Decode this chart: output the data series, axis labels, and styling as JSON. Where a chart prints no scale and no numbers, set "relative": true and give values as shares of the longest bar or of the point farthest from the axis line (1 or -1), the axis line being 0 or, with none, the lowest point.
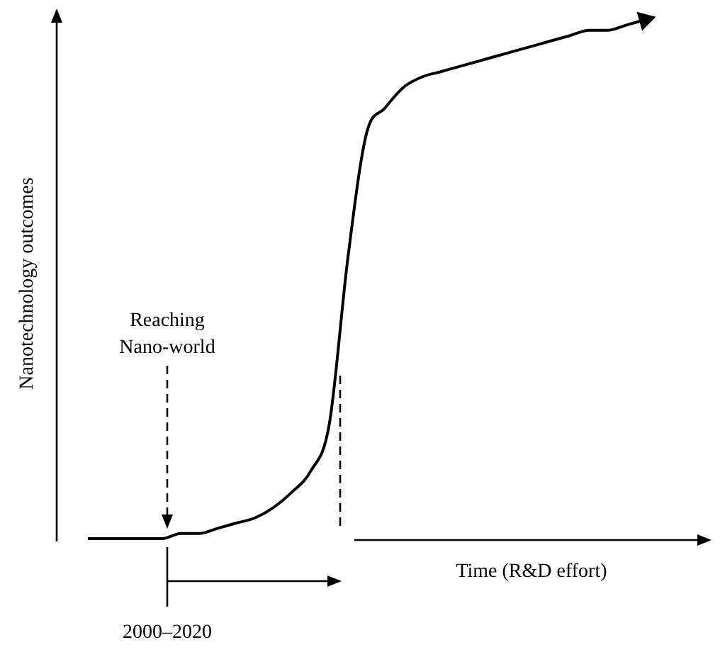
{
  "chart_data": {
    "type": "line",
    "relative": true,
    "xlabel": "Time (R&D effort)",
    "ylabel": "Nanotechnology outcomes",
    "categories": [
      null,
      null,
      null,
      null,
      null,
      null,
      null,
      null,
      null,
      null,
      null,
      null,
      null,
      null,
      null,
      null,
      null,
      null,
      null,
      null,
      null,
      null,
      null,
      null,
      null,
      null,
      null,
      null,
      null,
      null,
      null
    ],
    "series": [
      {
        "color": "#000000",
        "values": [
          0,
          0,
          0,
          0,
          0,
          0.01,
          0.01,
          0.02,
          0.03,
          0.04,
          0.06,
          0.09,
          0.13,
          0.22,
          0.54,
          0.78,
          0.83,
          0.87,
          0.89,
          0.9,
          0.91,
          0.92,
          0.93,
          0.94,
          0.95,
          0.96,
          0.97,
          0.98,
          0.98,
          0.99,
          1
        ]
      }
    ],
    "annotations": [
      "Reaching Nano-world",
      "2000–2020"
    ],
    "grid": false,
    "legend": false,
    "marker": "none",
    "line_style": "solid"
  }
}
